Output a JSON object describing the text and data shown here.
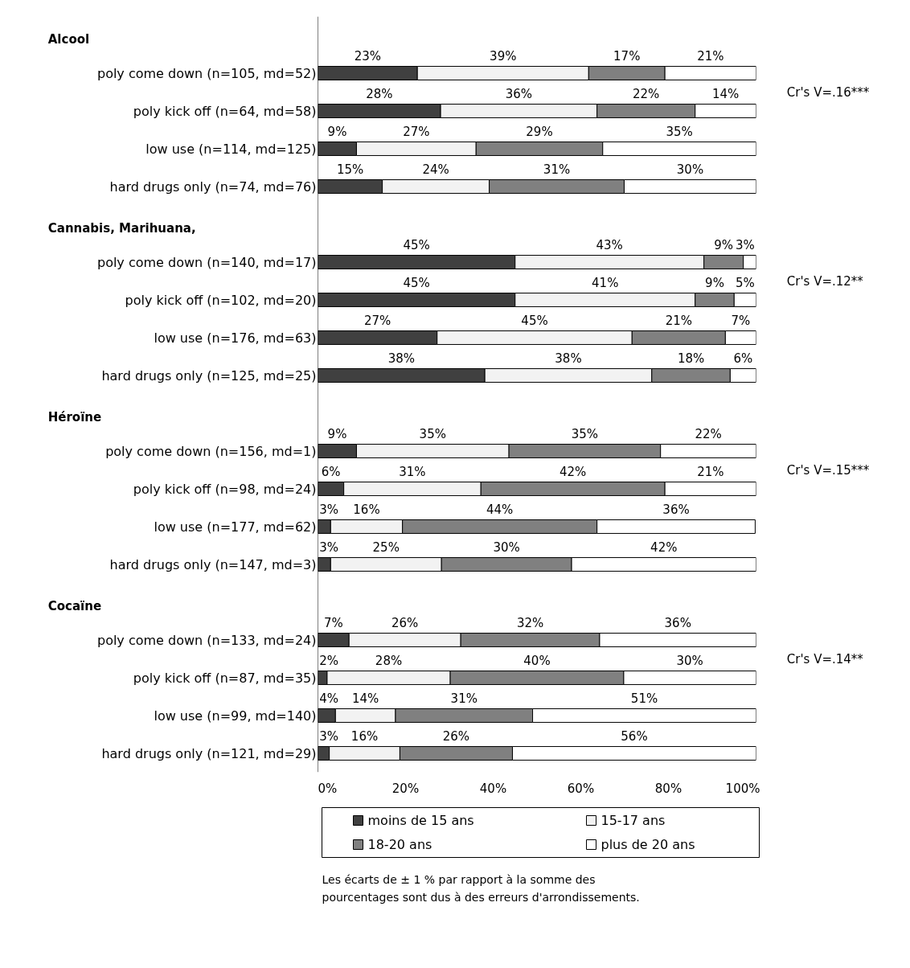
{
  "chart_data": {
    "type": "bar",
    "orientation": "horizontal",
    "stacked": true,
    "grid": false,
    "legend": "bottom",
    "categories": [
      null,
      "poly come down (n=105, md=52)",
      "poly kick off (n=64, md=58)",
      "low use (n=114, md=125)",
      "hard drugs only (n=74, md=76)",
      null,
      "poly come down (n=140, md=17)",
      "poly kick off (n=102, md=20)",
      "low use (n=176, md=63)",
      "hard drugs only (n=125, md=25)",
      null,
      "poly come down (n=156, md=1)",
      "poly kick off (n=98, md=24)",
      "low use (n=177, md=62)",
      "hard drugs only (n=147, md=3)",
      null,
      "poly come down (n=133, md=24)",
      "poly kick off (n=87, md=35)",
      "low use (n=99, md=140)",
      "hard drugs only (n=121, md=29)"
    ],
    "series": [
      {
        "name": "moins de 15 ans",
        "color": "#404040",
        "values": [
          null,
          22.7,
          28.0,
          8.8,
          14.7,
          null,
          45.0,
          45.0,
          27.2,
          38.1,
          null,
          8.8,
          5.9,
          2.9,
          2.9,
          null,
          7.1,
          2.1,
          4.0,
          2.6
        ],
        "value_labels": [
          null,
          "23%",
          "28%",
          "9%",
          "15%",
          null,
          "45%",
          "45%",
          "27%",
          "38%",
          null,
          "9%",
          "6%",
          "3%",
          "3%",
          null,
          "7%",
          "2%",
          "4%",
          "3%"
        ]
      },
      {
        "name": "15-17 ans",
        "color": "#f2f2f2",
        "values": [
          null,
          39.1,
          35.7,
          27.3,
          24.4,
          null,
          43.1,
          41.1,
          44.5,
          38.1,
          null,
          34.8,
          31.3,
          16.4,
          25.3,
          null,
          25.5,
          28.1,
          13.7,
          16.1
        ],
        "value_labels": [
          null,
          "39%",
          "36%",
          "27%",
          "24%",
          null,
          "43%",
          "41%",
          "45%",
          "38%",
          null,
          "35%",
          "31%",
          "16%",
          "25%",
          null,
          "26%",
          "28%",
          "14%",
          "16%"
        ]
      },
      {
        "name": "18-20 ans",
        "color": "#808080",
        "values": [
          null,
          17.4,
          22.4,
          28.9,
          30.8,
          null,
          9.0,
          8.9,
          21.3,
          17.9,
          null,
          34.6,
          42.0,
          44.4,
          29.7,
          null,
          31.7,
          39.6,
          31.3,
          25.7
        ],
        "value_labels": [
          null,
          "17%",
          "22%",
          "29%",
          "31%",
          null,
          "9%",
          "9%",
          "21%",
          "18%",
          null,
          "35%",
          "42%",
          "44%",
          "30%",
          null,
          "32%",
          "40%",
          "31%",
          "26%"
        ]
      },
      {
        "name": "plus de 20 ans",
        "color": "#ffffff",
        "values": [
          null,
          20.8,
          13.9,
          35.0,
          30.1,
          null,
          2.9,
          5.0,
          7.0,
          5.9,
          null,
          21.8,
          20.8,
          36.1,
          42.1,
          null,
          35.7,
          30.2,
          51.0,
          55.6
        ],
        "value_labels": [
          null,
          "21%",
          "14%",
          "35%",
          "30%",
          null,
          "3%",
          "5%",
          "7%",
          "6%",
          null,
          "22%",
          "21%",
          "36%",
          "42%",
          null,
          "36%",
          "30%",
          "51%",
          "56%"
        ]
      }
    ],
    "xlim": [
      0,
      100
    ],
    "xticks": [
      {
        "value": 0,
        "label": "0%"
      },
      {
        "value": 20,
        "label": "20%"
      },
      {
        "value": 40,
        "label": "40%"
      },
      {
        "value": 60,
        "label": "60%"
      },
      {
        "value": 80,
        "label": "80%"
      },
      {
        "value": 100,
        "label": "100%"
      }
    ],
    "annotations": [
      "Alcool",
      "Cannabis, Marihuana,",
      "Héroïne",
      "Cocaïne",
      "Cr's V=.16***",
      "Cr's V=.12**",
      "Cr's V=.15***",
      "Cr's V=.14**",
      "Les écarts de ± 1 % par rapport à la somme des\npourcentages sont dus à des erreurs d'arrondissements."
    ]
  }
}
